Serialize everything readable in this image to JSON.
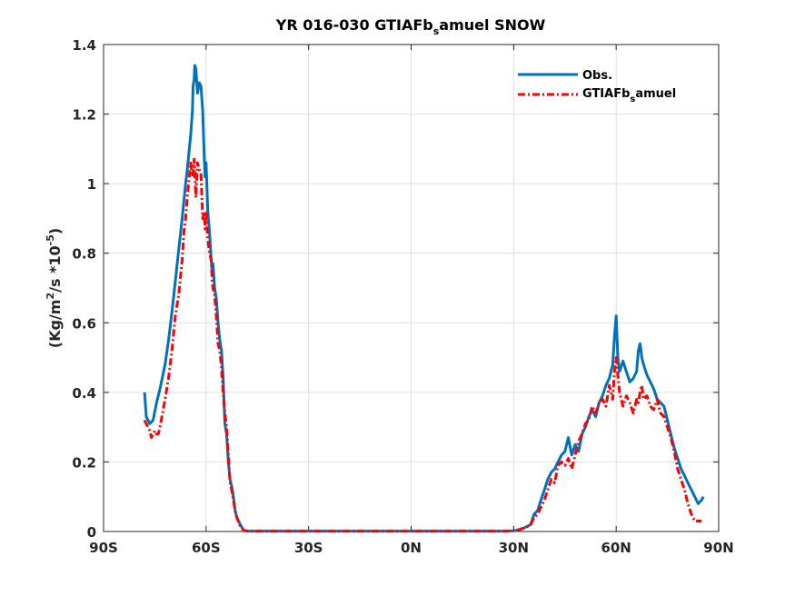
{
  "chart_data": {
    "type": "line",
    "title_main": "YR 016-030 GTIAFb",
    "title_sub": "s",
    "title_end": "amuel SNOW",
    "ylabel_pre": "(Kg/m",
    "ylabel_sup": "2",
    "ylabel_mid": "/s *10",
    "ylabel_sup2": "-5",
    "ylabel_post": ")",
    "xlim": [
      -90,
      90
    ],
    "ylim": [
      0,
      1.4
    ],
    "grid": true,
    "legend_position": "top-right",
    "xticks": [
      {
        "value": -90,
        "label": "90S"
      },
      {
        "value": -60,
        "label": "60S"
      },
      {
        "value": -30,
        "label": "30S"
      },
      {
        "value": 0,
        "label": "0N"
      },
      {
        "value": 30,
        "label": "30N"
      },
      {
        "value": 60,
        "label": "60N"
      },
      {
        "value": 90,
        "label": "90N"
      }
    ],
    "yticks": [
      {
        "value": 0,
        "label": "0"
      },
      {
        "value": 0.2,
        "label": "0.2"
      },
      {
        "value": 0.4,
        "label": "0.4"
      },
      {
        "value": 0.6,
        "label": "0.6"
      },
      {
        "value": 0.8,
        "label": "0.8"
      },
      {
        "value": 1.0,
        "label": "1"
      },
      {
        "value": 1.2,
        "label": "1.2"
      },
      {
        "value": 1.4,
        "label": "1.4"
      }
    ],
    "series": [
      {
        "name": "Obs.",
        "legend_main": "Obs.",
        "legend_sub": "",
        "legend_end": "",
        "color": "#0072bd",
        "dash": "",
        "x": [
          -78,
          -77.5,
          -76.5,
          -75.5,
          -74.5,
          -73.5,
          -72,
          -71,
          -70,
          -69,
          -68,
          -67,
          -66.5,
          -66,
          -65.5,
          -65,
          -64.5,
          -64,
          -63.8,
          -63.5,
          -63.3,
          -63,
          -62.5,
          -62,
          -61.5,
          -61,
          -60.5,
          -60.3,
          -60,
          -59.5,
          -59,
          -58.5,
          -58.2,
          -58,
          -57.5,
          -57,
          -56.5,
          -56,
          -55.5,
          -55,
          -54.5,
          -54,
          -53.5,
          -53,
          -52.5,
          -52,
          -51.5,
          -51,
          -50,
          -49,
          -48,
          -47,
          -46,
          -40,
          -30,
          -20,
          -10,
          0,
          10,
          20,
          28,
          30,
          31,
          32,
          33,
          34,
          35,
          36,
          37,
          38,
          39,
          40,
          41,
          42,
          43,
          44,
          45,
          46,
          47,
          48,
          49,
          50,
          51,
          52,
          53,
          54,
          55,
          56,
          57,
          58,
          59,
          59.5,
          60,
          60.5,
          61,
          62,
          63,
          64,
          65,
          66,
          66.5,
          67,
          67.5,
          68,
          69,
          70,
          71,
          72,
          73,
          74,
          75,
          76,
          77,
          78,
          79,
          80,
          81,
          82,
          83,
          84,
          85,
          85.5
        ],
        "y": [
          0.4,
          0.33,
          0.31,
          0.32,
          0.37,
          0.41,
          0.48,
          0.55,
          0.63,
          0.72,
          0.81,
          0.9,
          0.95,
          1.0,
          1.04,
          1.09,
          1.14,
          1.21,
          1.28,
          1.3,
          1.34,
          1.33,
          1.26,
          1.29,
          1.28,
          1.21,
          1.06,
          1.02,
          1.06,
          0.92,
          0.86,
          0.78,
          0.74,
          0.77,
          0.7,
          0.67,
          0.6,
          0.55,
          0.52,
          0.44,
          0.31,
          0.28,
          0.2,
          0.15,
          0.13,
          0.1,
          0.06,
          0.04,
          0.02,
          0.003,
          0.001,
          0.001,
          0.001,
          0.001,
          0.001,
          0.001,
          0.001,
          0.001,
          0.001,
          0.001,
          0.001,
          0.002,
          0.004,
          0.007,
          0.01,
          0.015,
          0.02,
          0.05,
          0.06,
          0.09,
          0.12,
          0.15,
          0.17,
          0.18,
          0.2,
          0.22,
          0.23,
          0.27,
          0.22,
          0.25,
          0.23,
          0.28,
          0.3,
          0.33,
          0.35,
          0.33,
          0.37,
          0.39,
          0.42,
          0.44,
          0.48,
          0.56,
          0.62,
          0.5,
          0.46,
          0.49,
          0.46,
          0.43,
          0.44,
          0.46,
          0.52,
          0.54,
          0.5,
          0.48,
          0.45,
          0.43,
          0.41,
          0.38,
          0.37,
          0.36,
          0.32,
          0.28,
          0.24,
          0.21,
          0.18,
          0.16,
          0.14,
          0.12,
          0.1,
          0.08,
          0.09,
          0.1
        ]
      },
      {
        "name": "GTIAFb_samuel",
        "legend_main": "GTIAFb",
        "legend_sub": "s",
        "legend_end": "amuel",
        "color": "#ff0000",
        "dash": "8,3,2,3",
        "x": [
          -78,
          -77.5,
          -77,
          -76.5,
          -76,
          -75.5,
          -75,
          -74.5,
          -74,
          -73.5,
          -72,
          -71,
          -70,
          -69,
          -68,
          -67,
          -66.5,
          -66,
          -65.5,
          -65,
          -64.5,
          -64,
          -63.8,
          -63.5,
          -63,
          -62.5,
          -62,
          -61.5,
          -61,
          -60.5,
          -60.3,
          -60,
          -59.5,
          -59,
          -58.5,
          -58.2,
          -58,
          -57.5,
          -57,
          -56.5,
          -56,
          -55.5,
          -55,
          -54.5,
          -54,
          -53.5,
          -53,
          -52.5,
          -52,
          -51.5,
          -51,
          -50,
          -49,
          -48,
          -47,
          -46,
          -40,
          -30,
          -20,
          -10,
          0,
          10,
          20,
          28,
          30,
          31,
          32,
          33,
          34,
          35,
          36,
          37,
          38,
          39,
          40,
          41,
          42,
          43,
          44,
          45,
          46,
          47,
          48,
          49,
          50,
          51,
          52,
          53,
          54,
          55,
          56,
          57,
          58,
          59,
          59.5,
          60,
          60.5,
          61,
          62,
          63,
          64,
          65,
          66,
          66.5,
          67,
          67.5,
          68,
          69,
          70,
          71,
          72,
          73,
          74,
          75,
          76,
          77,
          78,
          79,
          80,
          81,
          82,
          83,
          84,
          85
        ],
        "y": [
          0.32,
          0.31,
          0.3,
          0.29,
          0.27,
          0.28,
          0.29,
          0.28,
          0.28,
          0.3,
          0.38,
          0.44,
          0.52,
          0.62,
          0.68,
          0.78,
          0.86,
          0.9,
          0.96,
          1.01,
          1.06,
          1.02,
          1.03,
          1.07,
          0.96,
          1.06,
          1.04,
          1.03,
          0.9,
          0.92,
          0.87,
          0.92,
          0.84,
          0.8,
          0.78,
          0.72,
          0.7,
          0.68,
          0.62,
          0.54,
          0.52,
          0.47,
          0.4,
          0.34,
          0.3,
          0.22,
          0.14,
          0.12,
          0.09,
          0.06,
          0.04,
          0.015,
          0.003,
          0.001,
          0.001,
          0.001,
          0.001,
          0.001,
          0.001,
          0.001,
          0.001,
          0.001,
          0.001,
          0.001,
          0.002,
          0.004,
          0.006,
          0.01,
          0.014,
          0.02,
          0.04,
          0.05,
          0.07,
          0.09,
          0.12,
          0.15,
          0.14,
          0.19,
          0.2,
          0.19,
          0.21,
          0.18,
          0.22,
          0.26,
          0.28,
          0.31,
          0.32,
          0.36,
          0.34,
          0.37,
          0.38,
          0.36,
          0.42,
          0.38,
          0.46,
          0.5,
          0.45,
          0.4,
          0.36,
          0.39,
          0.37,
          0.34,
          0.38,
          0.37,
          0.4,
          0.42,
          0.38,
          0.39,
          0.36,
          0.35,
          0.38,
          0.34,
          0.33,
          0.3,
          0.27,
          0.23,
          0.18,
          0.15,
          0.12,
          0.08,
          0.05,
          0.03,
          0.03,
          0.03
        ]
      }
    ]
  }
}
